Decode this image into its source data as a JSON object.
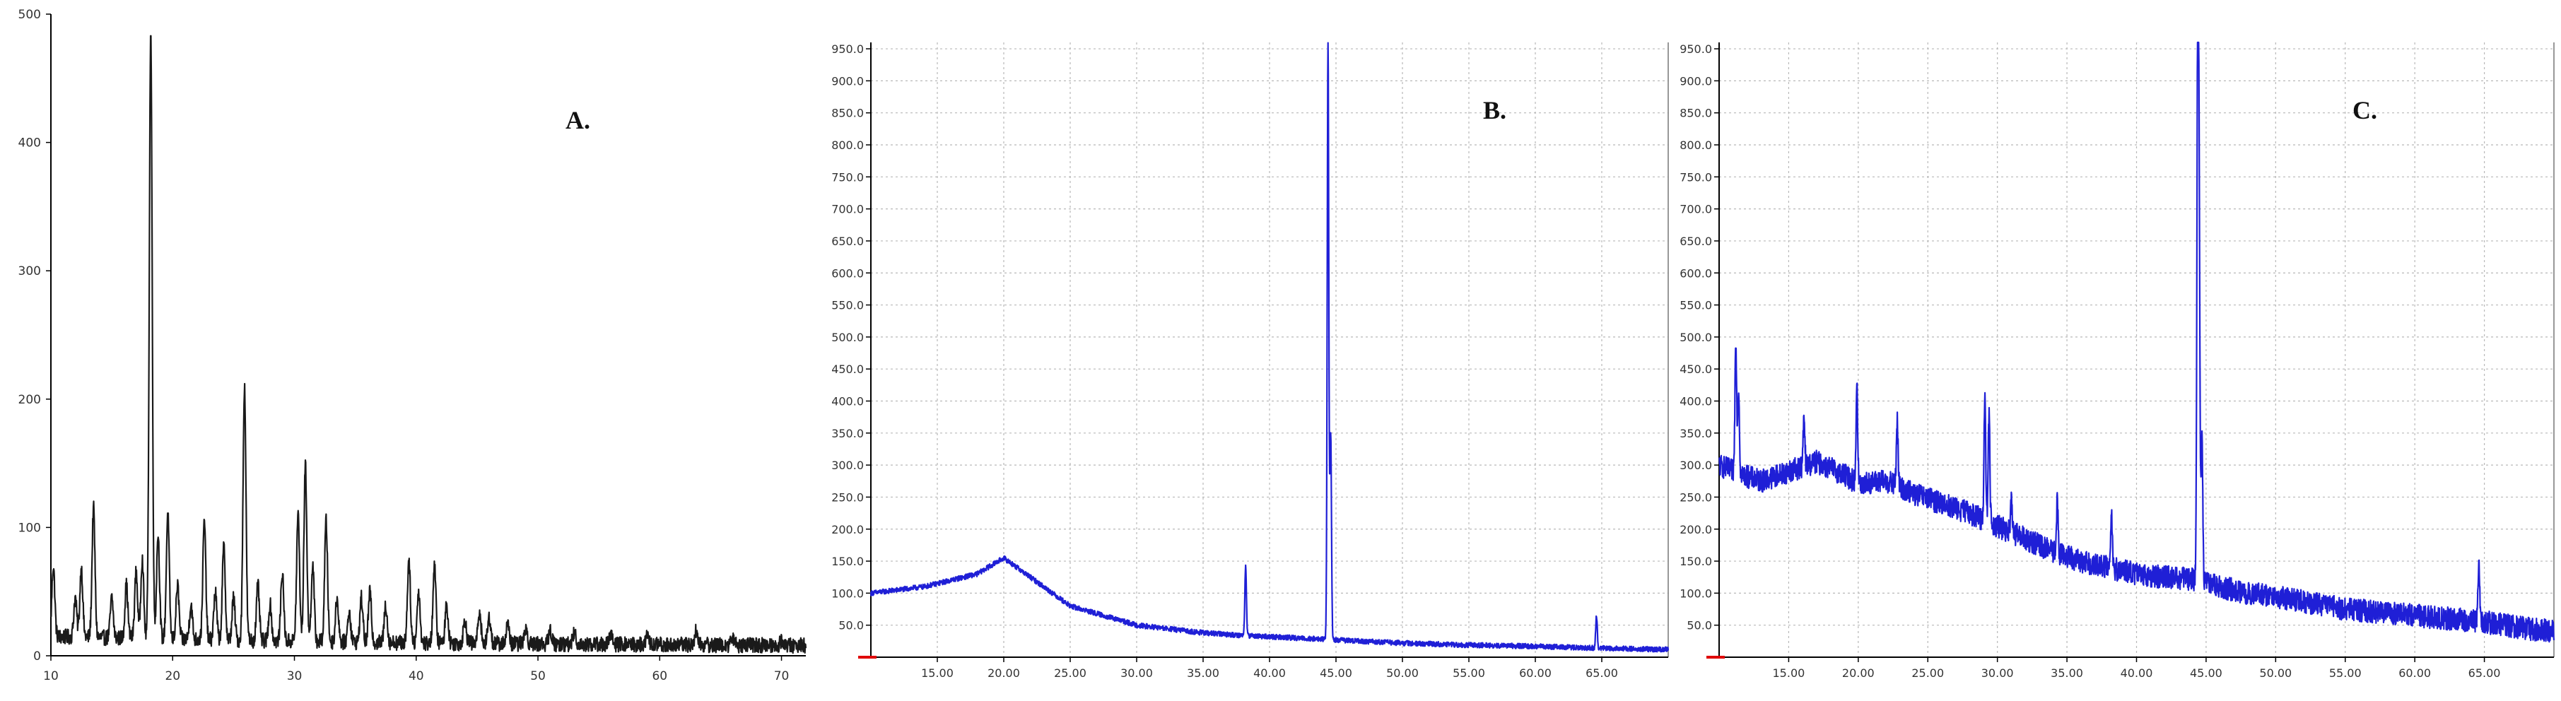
{
  "colors": {
    "a_series": "#1a1a1a",
    "bc_series": "#1f1fd6",
    "grid": "#b8b8b8",
    "axis": "#000000",
    "origin_mark": "#e00000"
  },
  "chart_data": [
    {
      "type": "line",
      "panel_label": "A.",
      "title": "",
      "xlabel": "",
      "ylabel": "",
      "xlim": [
        10,
        72
      ],
      "ylim": [
        0,
        500
      ],
      "grid": false,
      "x_ticks": [
        10,
        20,
        30,
        40,
        50,
        60,
        70
      ],
      "x_tick_labels": [
        "10",
        "20",
        "30",
        "40",
        "50",
        "60",
        "70"
      ],
      "y_ticks": [
        0,
        100,
        200,
        300,
        400,
        500
      ],
      "y_tick_labels": [
        "0",
        "100",
        "200",
        "300",
        "400",
        "500"
      ],
      "baseline": [
        [
          10,
          15
        ],
        [
          25,
          12
        ],
        [
          40,
          10
        ],
        [
          55,
          9
        ],
        [
          72,
          8
        ]
      ],
      "peaks": [
        [
          10.2,
          70
        ],
        [
          12.0,
          45
        ],
        [
          12.5,
          68
        ],
        [
          13.5,
          115
        ],
        [
          15.0,
          45
        ],
        [
          16.2,
          55
        ],
        [
          17.0,
          65
        ],
        [
          17.5,
          75
        ],
        [
          18.2,
          485
        ],
        [
          18.8,
          95
        ],
        [
          19.6,
          110
        ],
        [
          20.4,
          55
        ],
        [
          21.5,
          40
        ],
        [
          22.6,
          105
        ],
        [
          23.5,
          50
        ],
        [
          24.2,
          85
        ],
        [
          25.0,
          45
        ],
        [
          25.9,
          210
        ],
        [
          27.0,
          55
        ],
        [
          28.0,
          40
        ],
        [
          29.0,
          65
        ],
        [
          30.3,
          110
        ],
        [
          30.9,
          148
        ],
        [
          31.5,
          70
        ],
        [
          32.6,
          105
        ],
        [
          33.5,
          45
        ],
        [
          34.5,
          35
        ],
        [
          35.5,
          45
        ],
        [
          36.2,
          50
        ],
        [
          37.5,
          40
        ],
        [
          39.4,
          75
        ],
        [
          40.2,
          50
        ],
        [
          41.5,
          70
        ],
        [
          42.5,
          40
        ],
        [
          44.0,
          28
        ],
        [
          45.2,
          35
        ],
        [
          46.0,
          30
        ],
        [
          47.5,
          25
        ],
        [
          49.0,
          22
        ],
        [
          51.0,
          20
        ],
        [
          53.0,
          18
        ],
        [
          56.0,
          16
        ],
        [
          59.0,
          15
        ],
        [
          63.0,
          20
        ],
        [
          66.0,
          14
        ],
        [
          70.0,
          12
        ]
      ]
    },
    {
      "type": "line",
      "panel_label": "B.",
      "title": "",
      "xlabel": "",
      "ylabel": "",
      "xlim": [
        10,
        70
      ],
      "ylim": [
        0,
        960
      ],
      "grid": true,
      "x_ticks": [
        15,
        20,
        25,
        30,
        35,
        40,
        45,
        50,
        55,
        60,
        65
      ],
      "x_tick_labels": [
        "15.00",
        "20.00",
        "25.00",
        "30.00",
        "35.00",
        "40.00",
        "45.00",
        "50.00",
        "55.00",
        "60.00",
        "65.00"
      ],
      "y_ticks": [
        50,
        100,
        150,
        200,
        250,
        300,
        350,
        400,
        450,
        500,
        550,
        600,
        650,
        700,
        750,
        800,
        850,
        900,
        950
      ],
      "y_tick_labels": [
        "50.0",
        "100.0",
        "150.0",
        "200.0",
        "250.0",
        "300.0",
        "350.0",
        "400.0",
        "450.0",
        "500.0",
        "550.0",
        "600.0",
        "650.0",
        "700.0",
        "750.0",
        "800.0",
        "850.0",
        "900.0",
        "950.0"
      ],
      "baseline": [
        [
          10,
          100
        ],
        [
          14,
          110
        ],
        [
          18,
          130
        ],
        [
          20,
          155
        ],
        [
          22,
          125
        ],
        [
          25,
          80
        ],
        [
          30,
          50
        ],
        [
          35,
          38
        ],
        [
          38,
          34
        ],
        [
          44,
          28
        ],
        [
          50,
          22
        ],
        [
          55,
          19
        ],
        [
          60,
          17
        ],
        [
          65,
          14
        ],
        [
          70,
          12
        ]
      ],
      "peaks": [
        [
          38.2,
          140
        ],
        [
          44.4,
          960
        ],
        [
          44.6,
          350
        ],
        [
          64.6,
          65
        ]
      ]
    },
    {
      "type": "line",
      "panel_label": "C.",
      "title": "",
      "xlabel": "",
      "ylabel": "",
      "xlim": [
        10,
        70
      ],
      "ylim": [
        0,
        960
      ],
      "grid": true,
      "x_ticks": [
        15,
        20,
        25,
        30,
        35,
        40,
        45,
        50,
        55,
        60,
        65
      ],
      "x_tick_labels": [
        "15.00",
        "20.00",
        "25.00",
        "30.00",
        "35.00",
        "40.00",
        "45.00",
        "50.00",
        "55.00",
        "60.00",
        "65.00"
      ],
      "y_ticks": [
        50,
        100,
        150,
        200,
        250,
        300,
        350,
        400,
        450,
        500,
        550,
        600,
        650,
        700,
        750,
        800,
        850,
        900,
        950
      ],
      "y_tick_labels": [
        "50.0",
        "100.0",
        "150.0",
        "200.0",
        "250.0",
        "300.0",
        "350.0",
        "400.0",
        "450.0",
        "500.0",
        "550.0",
        "600.0",
        "650.0",
        "700.0",
        "750.0",
        "800.0",
        "850.0",
        "900.0",
        "950.0"
      ],
      "baseline": [
        [
          10,
          300
        ],
        [
          11,
          290
        ],
        [
          13,
          275
        ],
        [
          15,
          290
        ],
        [
          17,
          305
        ],
        [
          19,
          285
        ],
        [
          20,
          270
        ],
        [
          22,
          275
        ],
        [
          24,
          255
        ],
        [
          26,
          240
        ],
        [
          28,
          225
        ],
        [
          30,
          205
        ],
        [
          32,
          185
        ],
        [
          34,
          165
        ],
        [
          36,
          150
        ],
        [
          38,
          140
        ],
        [
          40,
          130
        ],
        [
          42,
          125
        ],
        [
          44,
          122
        ],
        [
          45,
          120
        ],
        [
          46,
          110
        ],
        [
          48,
          100
        ],
        [
          50,
          95
        ],
        [
          55,
          75
        ],
        [
          60,
          65
        ],
        [
          65,
          55
        ],
        [
          68,
          45
        ],
        [
          70,
          40
        ]
      ],
      "peaks": [
        [
          11.2,
          500
        ],
        [
          11.4,
          420
        ],
        [
          16.1,
          370
        ],
        [
          19.9,
          420
        ],
        [
          22.8,
          370
        ],
        [
          29.1,
          410
        ],
        [
          29.4,
          380
        ],
        [
          31.0,
          240
        ],
        [
          34.3,
          240
        ],
        [
          38.2,
          230
        ],
        [
          44.4,
          960
        ],
        [
          44.5,
          620
        ],
        [
          44.7,
          350
        ],
        [
          64.6,
          140
        ]
      ]
    }
  ]
}
